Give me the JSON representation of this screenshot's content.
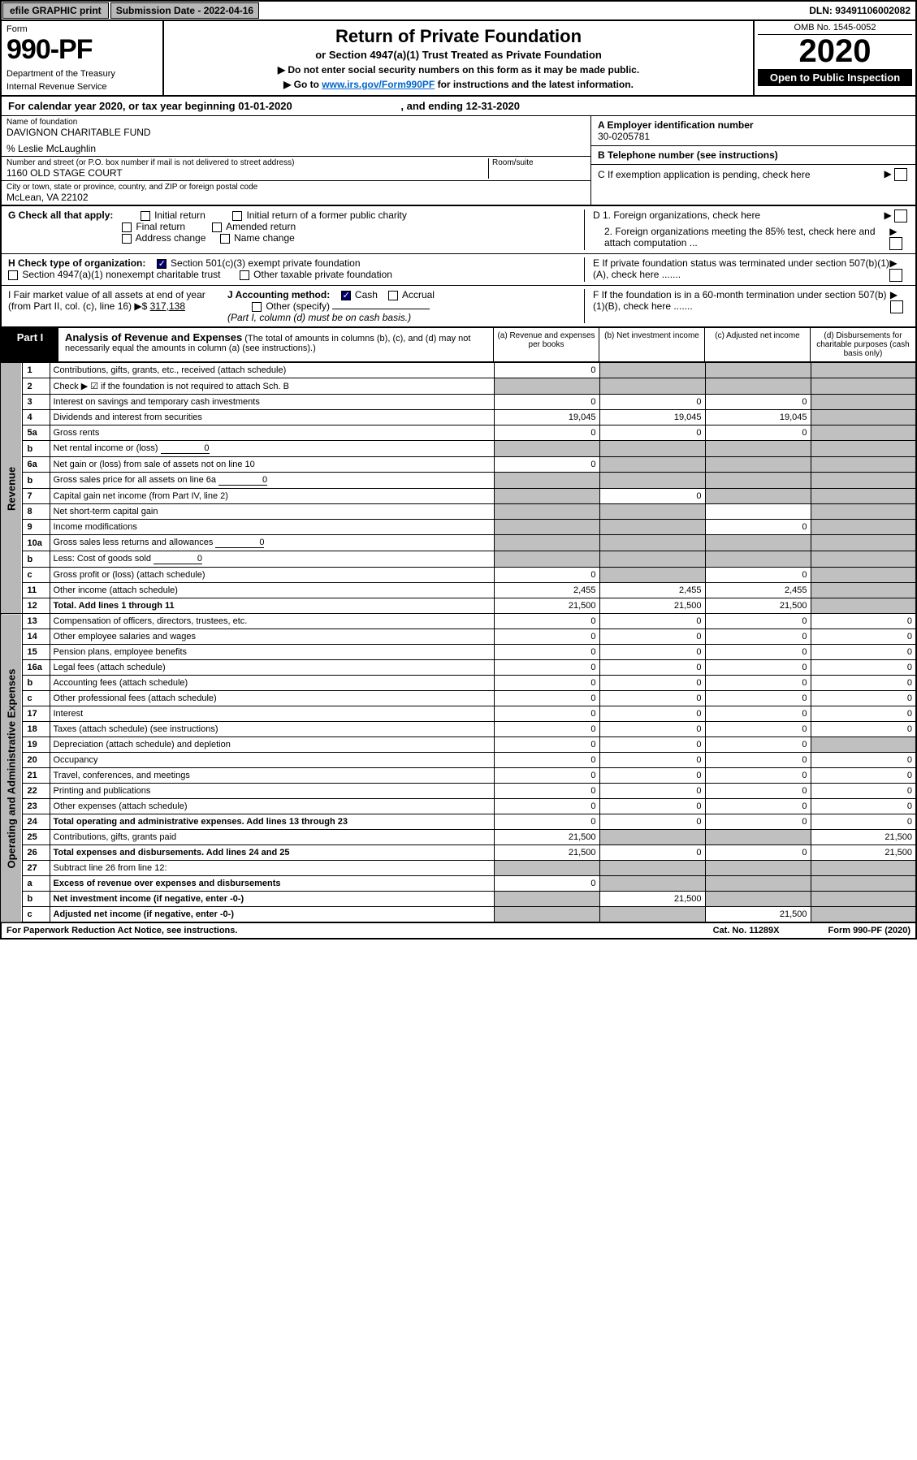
{
  "topbar": {
    "efile_btn": "efile GRAPHIC print",
    "submission_label": "Submission Date - 2022-04-16",
    "dln": "DLN: 93491106002082"
  },
  "header": {
    "form_label": "Form",
    "form_number": "990-PF",
    "dept": "Department of the Treasury",
    "irs": "Internal Revenue Service",
    "title": "Return of Private Foundation",
    "subtitle": "or Section 4947(a)(1) Trust Treated as Private Foundation",
    "note1": "▶ Do not enter social security numbers on this form as it may be made public.",
    "note2_pre": "▶ Go to ",
    "note2_link": "www.irs.gov/Form990PF",
    "note2_post": " for instructions and the latest information.",
    "omb": "OMB No. 1545-0052",
    "year": "2020",
    "inspect": "Open to Public Inspection"
  },
  "calyear": "For calendar year 2020, or tax year beginning 01-01-2020",
  "calyear_end": ", and ending 12-31-2020",
  "entity": {
    "name_lbl": "Name of foundation",
    "name": "DAVIGNON CHARITABLE FUND",
    "careof": "% Leslie McLaughlin",
    "addr_lbl": "Number and street (or P.O. box number if mail is not delivered to street address)",
    "room_lbl": "Room/suite",
    "addr": "1160 OLD STAGE COURT",
    "city_lbl": "City or town, state or province, country, and ZIP or foreign postal code",
    "city": "McLean, VA  22102",
    "ein_lbl": "A Employer identification number",
    "ein": "30-0205781",
    "phone_lbl": "B Telephone number (see instructions)",
    "phone": "",
    "c_lbl": "C If exemption application is pending, check here"
  },
  "g": {
    "label": "G Check all that apply:",
    "initial": "Initial return",
    "initial_former": "Initial return of a former public charity",
    "final": "Final return",
    "amended": "Amended return",
    "address": "Address change",
    "name": "Name change"
  },
  "d": {
    "d1": "D 1. Foreign organizations, check here",
    "d2": "2. Foreign organizations meeting the 85% test, check here and attach computation ..."
  },
  "h": {
    "label": "H Check type of organization:",
    "s501": "Section 501(c)(3) exempt private foundation",
    "s4947": "Section 4947(a)(1) nonexempt charitable trust",
    "other_tax": "Other taxable private foundation"
  },
  "e": "E  If private foundation status was terminated under section 507(b)(1)(A), check here .......",
  "i": {
    "label": "I Fair market value of all assets at end of year (from Part II, col. (c), line 16) ▶$ ",
    "value": "317,138",
    "j_label": "J Accounting method:",
    "cash": "Cash",
    "accrual": "Accrual",
    "other": "Other (specify)",
    "note": "(Part I, column (d) must be on cash basis.)"
  },
  "f": "F  If the foundation is in a 60-month termination under section 507(b)(1)(B), check here .......",
  "part1": {
    "label": "Part I",
    "title": "Analysis of Revenue and Expenses",
    "title_note": "(The total of amounts in columns (b), (c), and (d) may not necessarily equal the amounts in column (a) (see instructions).)",
    "col_a": "(a) Revenue and expenses per books",
    "col_b": "(b) Net investment income",
    "col_c": "(c) Adjusted net income",
    "col_d": "(d) Disbursements for charitable purposes (cash basis only)"
  },
  "side_labels": {
    "revenue": "Revenue",
    "expenses": "Operating and Administrative Expenses"
  },
  "rows": [
    {
      "n": "1",
      "desc": "Contributions, gifts, grants, etc., received (attach schedule)",
      "a": "0",
      "b": "",
      "c": "",
      "d": "",
      "bs": true,
      "cs": true,
      "ds": true
    },
    {
      "n": "2",
      "desc": "Check ▶ ☑ if the foundation is not required to attach Sch. B",
      "a": "",
      "b": "",
      "c": "",
      "d": "",
      "as": true,
      "bs": true,
      "cs": true,
      "ds": true
    },
    {
      "n": "3",
      "desc": "Interest on savings and temporary cash investments",
      "a": "0",
      "b": "0",
      "c": "0",
      "d": "",
      "ds": true
    },
    {
      "n": "4",
      "desc": "Dividends and interest from securities",
      "a": "19,045",
      "b": "19,045",
      "c": "19,045",
      "d": "",
      "ds": true
    },
    {
      "n": "5a",
      "desc": "Gross rents",
      "a": "0",
      "b": "0",
      "c": "0",
      "d": "",
      "ds": true
    },
    {
      "n": "b",
      "desc": "Net rental income or (loss)",
      "inline": "0",
      "a": "",
      "b": "",
      "c": "",
      "d": "",
      "as": true,
      "bs": true,
      "cs": true,
      "ds": true
    },
    {
      "n": "6a",
      "desc": "Net gain or (loss) from sale of assets not on line 10",
      "a": "0",
      "b": "",
      "c": "",
      "d": "",
      "bs": true,
      "cs": true,
      "ds": true
    },
    {
      "n": "b",
      "desc": "Gross sales price for all assets on line 6a",
      "inline": "0",
      "a": "",
      "b": "",
      "c": "",
      "d": "",
      "as": true,
      "bs": true,
      "cs": true,
      "ds": true
    },
    {
      "n": "7",
      "desc": "Capital gain net income (from Part IV, line 2)",
      "a": "",
      "b": "0",
      "c": "",
      "d": "",
      "as": true,
      "cs": true,
      "ds": true
    },
    {
      "n": "8",
      "desc": "Net short-term capital gain",
      "a": "",
      "b": "",
      "c": "",
      "d": "",
      "as": true,
      "bs": true,
      "ds": true
    },
    {
      "n": "9",
      "desc": "Income modifications",
      "a": "",
      "b": "",
      "c": "0",
      "d": "",
      "as": true,
      "bs": true,
      "ds": true
    },
    {
      "n": "10a",
      "desc": "Gross sales less returns and allowances",
      "inline": "0",
      "a": "",
      "b": "",
      "c": "",
      "d": "",
      "as": true,
      "bs": true,
      "cs": true,
      "ds": true
    },
    {
      "n": "b",
      "desc": "Less: Cost of goods sold",
      "inline": "0",
      "a": "",
      "b": "",
      "c": "",
      "d": "",
      "as": true,
      "bs": true,
      "cs": true,
      "ds": true
    },
    {
      "n": "c",
      "desc": "Gross profit or (loss) (attach schedule)",
      "a": "0",
      "b": "",
      "c": "0",
      "d": "",
      "bs": true,
      "ds": true
    },
    {
      "n": "11",
      "desc": "Other income (attach schedule)",
      "a": "2,455",
      "b": "2,455",
      "c": "2,455",
      "d": "",
      "ds": true
    },
    {
      "n": "12",
      "desc": "Total. Add lines 1 through 11",
      "bold": true,
      "a": "21,500",
      "b": "21,500",
      "c": "21,500",
      "d": "",
      "ds": true
    },
    {
      "n": "13",
      "desc": "Compensation of officers, directors, trustees, etc.",
      "a": "0",
      "b": "0",
      "c": "0",
      "d": "0"
    },
    {
      "n": "14",
      "desc": "Other employee salaries and wages",
      "a": "0",
      "b": "0",
      "c": "0",
      "d": "0"
    },
    {
      "n": "15",
      "desc": "Pension plans, employee benefits",
      "a": "0",
      "b": "0",
      "c": "0",
      "d": "0"
    },
    {
      "n": "16a",
      "desc": "Legal fees (attach schedule)",
      "a": "0",
      "b": "0",
      "c": "0",
      "d": "0"
    },
    {
      "n": "b",
      "desc": "Accounting fees (attach schedule)",
      "a": "0",
      "b": "0",
      "c": "0",
      "d": "0"
    },
    {
      "n": "c",
      "desc": "Other professional fees (attach schedule)",
      "a": "0",
      "b": "0",
      "c": "0",
      "d": "0"
    },
    {
      "n": "17",
      "desc": "Interest",
      "a": "0",
      "b": "0",
      "c": "0",
      "d": "0"
    },
    {
      "n": "18",
      "desc": "Taxes (attach schedule) (see instructions)",
      "a": "0",
      "b": "0",
      "c": "0",
      "d": "0"
    },
    {
      "n": "19",
      "desc": "Depreciation (attach schedule) and depletion",
      "a": "0",
      "b": "0",
      "c": "0",
      "d": "",
      "ds": true
    },
    {
      "n": "20",
      "desc": "Occupancy",
      "a": "0",
      "b": "0",
      "c": "0",
      "d": "0"
    },
    {
      "n": "21",
      "desc": "Travel, conferences, and meetings",
      "a": "0",
      "b": "0",
      "c": "0",
      "d": "0"
    },
    {
      "n": "22",
      "desc": "Printing and publications",
      "a": "0",
      "b": "0",
      "c": "0",
      "d": "0"
    },
    {
      "n": "23",
      "desc": "Other expenses (attach schedule)",
      "a": "0",
      "b": "0",
      "c": "0",
      "d": "0"
    },
    {
      "n": "24",
      "desc": "Total operating and administrative expenses. Add lines 13 through 23",
      "bold": true,
      "a": "0",
      "b": "0",
      "c": "0",
      "d": "0"
    },
    {
      "n": "25",
      "desc": "Contributions, gifts, grants paid",
      "a": "21,500",
      "b": "",
      "c": "",
      "d": "21,500",
      "bs": true,
      "cs": true
    },
    {
      "n": "26",
      "desc": "Total expenses and disbursements. Add lines 24 and 25",
      "bold": true,
      "a": "21,500",
      "b": "0",
      "c": "0",
      "d": "21,500"
    },
    {
      "n": "27",
      "desc": "Subtract line 26 from line 12:",
      "a": "",
      "b": "",
      "c": "",
      "d": "",
      "as": true,
      "bs": true,
      "cs": true,
      "ds": true
    },
    {
      "n": "a",
      "desc": "Excess of revenue over expenses and disbursements",
      "bold": true,
      "a": "0",
      "b": "",
      "c": "",
      "d": "",
      "bs": true,
      "cs": true,
      "ds": true
    },
    {
      "n": "b",
      "desc": "Net investment income (if negative, enter -0-)",
      "bold": true,
      "a": "",
      "b": "21,500",
      "c": "",
      "d": "",
      "as": true,
      "cs": true,
      "ds": true
    },
    {
      "n": "c",
      "desc": "Adjusted net income (if negative, enter -0-)",
      "bold": true,
      "a": "",
      "b": "",
      "c": "21,500",
      "d": "",
      "as": true,
      "bs": true,
      "ds": true
    }
  ],
  "footer": {
    "left": "For Paperwork Reduction Act Notice, see instructions.",
    "center": "Cat. No. 11289X",
    "right": "Form 990-PF (2020)"
  }
}
